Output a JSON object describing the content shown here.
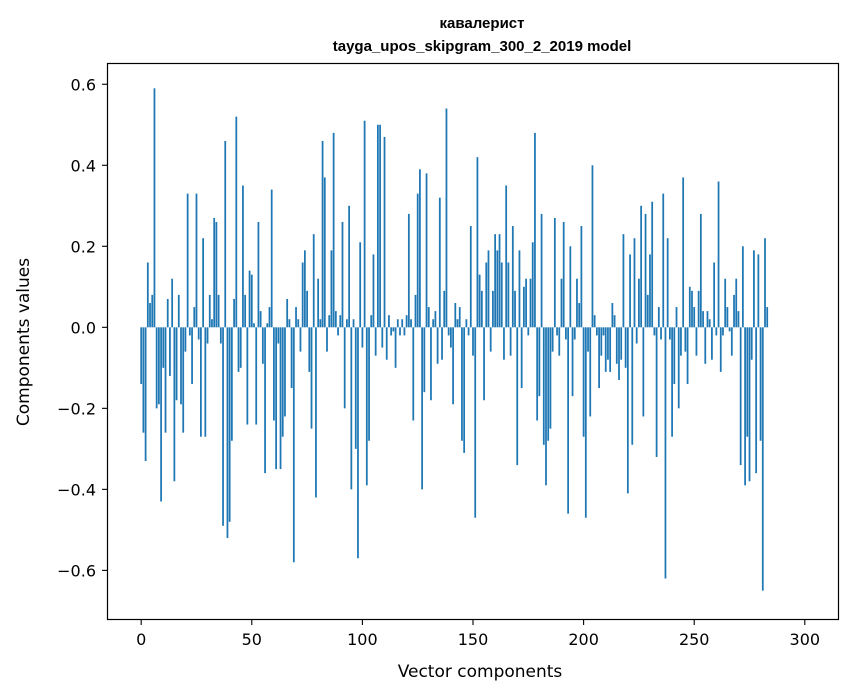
{
  "chart_data": {
    "type": "bar",
    "title": "кавалерист",
    "subtitle": "tayga_upos_skipgram_300_2_2019 model",
    "xlabel": "Vector components",
    "ylabel": "Components values",
    "xlim": [
      -15,
      315
    ],
    "ylim": [
      -0.72,
      0.65
    ],
    "xticks": [
      0,
      50,
      100,
      150,
      200,
      250,
      300
    ],
    "yticks": [
      -0.6,
      -0.4,
      -0.2,
      0.0,
      0.2,
      0.4,
      0.6
    ],
    "xtick_labels": [
      "0",
      "50",
      "100",
      "150",
      "200",
      "250",
      "300"
    ],
    "ytick_labels": [
      "−0.6",
      "−0.4",
      "−0.2",
      "0.0",
      "0.2",
      "0.4",
      "0.6"
    ],
    "bar_color": "#1f77b4",
    "values": [
      -0.14,
      -0.26,
      -0.33,
      0.16,
      0.06,
      0.08,
      0.59,
      -0.2,
      -0.19,
      -0.43,
      -0.1,
      -0.26,
      0.07,
      -0.12,
      0.12,
      -0.38,
      -0.18,
      0.08,
      -0.19,
      -0.26,
      -0.06,
      0.33,
      -0.02,
      -0.14,
      0.05,
      0.33,
      -0.03,
      -0.27,
      0.22,
      -0.27,
      -0.04,
      0.08,
      0.02,
      0.27,
      0.26,
      0.08,
      -0.04,
      -0.49,
      0.46,
      -0.52,
      -0.48,
      -0.28,
      0.07,
      0.52,
      -0.11,
      -0.1,
      0.35,
      0.08,
      -0.24,
      0.14,
      0.13,
      0.01,
      -0.24,
      0.26,
      0.04,
      -0.09,
      -0.36,
      0.01,
      0.05,
      0.34,
      -0.23,
      -0.35,
      -0.04,
      -0.35,
      -0.27,
      -0.22,
      0.07,
      0.02,
      -0.15,
      -0.58,
      0.05,
      0.02,
      -0.06,
      0.16,
      0.19,
      0.09,
      -0.11,
      -0.25,
      0.23,
      -0.42,
      0.12,
      0.02,
      0.46,
      0.37,
      -0.06,
      0.03,
      0.19,
      0.48,
      0.04,
      -0.02,
      0.03,
      0.26,
      -0.2,
      0.02,
      0.3,
      -0.4,
      0.02,
      -0.3,
      -0.57,
      0.21,
      -0.05,
      0.51,
      -0.39,
      -0.28,
      0.03,
      0.18,
      -0.07,
      0.5,
      0.5,
      -0.05,
      0.47,
      -0.08,
      0.03,
      -0.02,
      -0.01,
      -0.1,
      0.02,
      -0.02,
      0.02,
      -0.02,
      0.03,
      0.28,
      0.02,
      -0.23,
      0.08,
      0.33,
      0.39,
      -0.4,
      -0.16,
      0.38,
      0.05,
      -0.18,
      0.02,
      0.04,
      -0.09,
      0.32,
      -0.08,
      0.09,
      0.54,
      -0.02,
      -0.05,
      -0.19,
      0.06,
      0.02,
      0.05,
      -0.28,
      -0.31,
      0.02,
      -0.02,
      0.25,
      -0.07,
      -0.47,
      0.42,
      0.13,
      0.09,
      -0.18,
      0.16,
      0.19,
      -0.06,
      0.09,
      0.23,
      0.19,
      0.23,
      0.16,
      -0.08,
      0.35,
      0.16,
      -0.07,
      0.25,
      0.09,
      -0.34,
      0.19,
      -0.15,
      0.1,
      0.12,
      -0.02,
      0.12,
      0.21,
      0.48,
      -0.23,
      -0.17,
      0.28,
      -0.29,
      -0.39,
      -0.28,
      -0.25,
      -0.06,
      0.27,
      -0.02,
      -0.07,
      0.12,
      0.26,
      -0.03,
      -0.46,
      0.2,
      -0.17,
      -0.03,
      0.12,
      0.06,
      0.25,
      -0.27,
      -0.47,
      -0.06,
      -0.22,
      0.4,
      0.03,
      -0.02,
      -0.15,
      -0.07,
      -0.02,
      -0.11,
      -0.08,
      -0.11,
      0.06,
      0.03,
      -0.09,
      -0.13,
      -0.08,
      0.23,
      -0.1,
      -0.41,
      0.18,
      -0.29,
      0.22,
      -0.04,
      0.12,
      0.3,
      -0.22,
      0.28,
      0.08,
      0.18,
      0.31,
      -0.02,
      -0.32,
      0.05,
      -0.03,
      0.33,
      -0.62,
      0.22,
      -0.03,
      -0.27,
      -0.14,
      0.05,
      -0.2,
      -0.07,
      0.37,
      -0.06,
      -0.14,
      0.1,
      0.09,
      0.05,
      -0.07,
      0.09,
      0.28,
      0.04,
      -0.09,
      0.04,
      0.02,
      -0.08,
      0.16,
      -0.02,
      0.36,
      -0.11,
      -0.02,
      0.12,
      0.05,
      -0.01,
      -0.07,
      0.08,
      0.12,
      0.04,
      -0.34,
      0.2,
      -0.39,
      -0.27,
      -0.38,
      -0.08,
      0.19,
      -0.36,
      0.18,
      -0.28,
      -0.65,
      0.22,
      0.05
    ]
  }
}
